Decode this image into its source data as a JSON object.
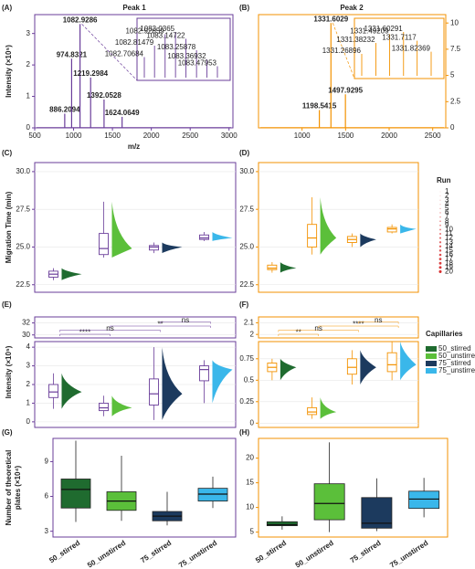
{
  "chart_data": [
    {
      "type": "spectrum",
      "panel": "(A)",
      "title": "Peak 1",
      "color": "#6a3d9a",
      "tick_text_color": "#333333",
      "y_axis_side": "left",
      "ylabel": "Intensity (×10⁵)",
      "xlabel": "m/z",
      "xlim": [
        500,
        3050
      ],
      "xticks": [
        500,
        1000,
        1500,
        2000,
        2500,
        3000
      ],
      "ylim": [
        0,
        3.6
      ],
      "yticks": [
        0,
        1,
        2,
        3
      ],
      "peaks": {
        "x": [
          886.2094,
          974.8321,
          1082.9286,
          1219.2984,
          1392.0528,
          1624.0649
        ],
        "values": [
          0.45,
          2.2,
          3.3,
          1.6,
          0.9,
          0.35
        ]
      },
      "inset": {
        "x": [
          1082.70684,
          1082.81479,
          1082.92659,
          1083.0365,
          1083.14722,
          1083.25878,
          1083.36932,
          1083.47953
        ],
        "values": [
          0.45,
          0.7,
          0.95,
          1.0,
          0.85,
          0.6,
          0.4,
          0.25
        ]
      }
    },
    {
      "type": "spectrum",
      "panel": "(B)",
      "title": "Peak 2",
      "color": "#f39200",
      "tick_text_color": "#f39200",
      "y_axis_side": "right",
      "xlim": [
        500,
        2650
      ],
      "xticks": [
        1000,
        1500,
        2000,
        2500
      ],
      "ylim": [
        0,
        10.8
      ],
      "yticks": [
        0,
        2.5,
        5,
        7.5,
        10
      ],
      "peaks": {
        "x": [
          1198.5415,
          1331.6029,
          1497.9295
        ],
        "values": [
          1.7,
          10,
          3.2
        ]
      },
      "inset": {
        "x": [
          1331.26896,
          1331.38232,
          1331.49209,
          1331.60291,
          1331.7117,
          1331.82369
        ],
        "values": [
          0.5,
          0.75,
          0.95,
          1.0,
          0.8,
          0.55
        ]
      }
    },
    {
      "type": "violin",
      "panel": "(C)",
      "color": "#6a3d9a",
      "tick_text_color": "#333333",
      "ylabel": "Migration Time (min)",
      "grid": true,
      "colors": [
        "#1f6b2f",
        "#5bbf3a",
        "#1c3a5e",
        "#3ab7ea"
      ],
      "ylim": [
        22,
        30.6
      ],
      "yticks": [
        22.5,
        {
          "value": 25,
          "label": "25.0"
        },
        27.5,
        {
          "value": 30,
          "label": "30.0"
        }
      ],
      "boxes": [
        [
          22.8,
          23.0,
          23.2,
          23.4,
          23.6
        ],
        [
          24.3,
          24.5,
          24.9,
          25.9,
          28.0
        ],
        [
          24.6,
          24.8,
          25.0,
          25.1,
          25.3
        ],
        [
          25.4,
          25.5,
          25.6,
          25.8,
          26.0
        ]
      ]
    },
    {
      "type": "violin",
      "panel": "(D)",
      "color": "#f39200",
      "tick_text_color": "#f39200",
      "grid": true,
      "colors": [
        "#1f6b2f",
        "#5bbf3a",
        "#1c3a5e",
        "#3ab7ea"
      ],
      "ylim": [
        22,
        30.6
      ],
      "yticks": [
        22.5,
        {
          "value": 25,
          "label": "25.0"
        },
        27.5,
        {
          "value": 30,
          "label": "30.0"
        }
      ],
      "boxes": [
        [
          23.3,
          23.5,
          23.6,
          23.8,
          24.0
        ],
        [
          24.5,
          25.0,
          25.6,
          26.5,
          28.3
        ],
        [
          25.0,
          25.3,
          25.5,
          25.7,
          25.9
        ],
        [
          25.9,
          26.0,
          26.2,
          26.3,
          26.5
        ]
      ],
      "run_legend": {
        "title": "Run",
        "labels": [
          1,
          2,
          3,
          4,
          5,
          6,
          7,
          8,
          9,
          10,
          11,
          12,
          13,
          14,
          15,
          16,
          17,
          18,
          19,
          20
        ]
      }
    },
    {
      "type": "violin",
      "panel": "(E)",
      "color": "#6a3d9a",
      "tick_text_color": "#333333",
      "ylabel": "Intensity (×10⁵)",
      "grid": true,
      "colors": [
        "#1f6b2f",
        "#5bbf3a",
        "#1c3a5e",
        "#3ab7ea"
      ],
      "ylim": [
        -0.3,
        4.3
      ],
      "yticks": [
        0,
        1,
        2,
        3,
        4
      ],
      "ylim_top": [
        29.5,
        33
      ],
      "yticks_top": [
        30,
        32
      ],
      "significance": [
        "****",
        "ns",
        "**",
        "ns"
      ],
      "boxes": [
        [
          0.7,
          1.3,
          1.6,
          2.0,
          2.6
        ],
        [
          0.3,
          0.6,
          0.75,
          1.0,
          1.4
        ],
        [
          0.1,
          0.9,
          1.5,
          2.3,
          4.0
        ],
        [
          1.0,
          2.2,
          2.8,
          3.0,
          3.3
        ]
      ]
    },
    {
      "type": "violin",
      "panel": "(F)",
      "color": "#f39200",
      "tick_text_color": "#f39200",
      "grid": true,
      "colors": [
        "#1f6b2f",
        "#5bbf3a",
        "#1c3a5e",
        "#3ab7ea"
      ],
      "ylim": [
        -0.05,
        0.95
      ],
      "yticks": [
        0,
        0.25,
        0.5,
        0.75
      ],
      "ylim_top": [
        1.97,
        2.15
      ],
      "yticks_top": [
        2,
        2.1
      ],
      "significance": [
        "**",
        "ns",
        "****",
        "ns"
      ],
      "boxes": [
        [
          0.5,
          0.6,
          0.65,
          0.7,
          0.75
        ],
        [
          0.05,
          0.1,
          0.13,
          0.18,
          0.3
        ],
        [
          0.45,
          0.57,
          0.65,
          0.75,
          0.85
        ],
        [
          0.5,
          0.6,
          0.68,
          0.82,
          0.95
        ]
      ],
      "legend_title": "Capillaries",
      "categories": [
        "50_stirred",
        "50_unstirred",
        "75_stirred",
        "75_unstirred"
      ]
    },
    {
      "type": "box",
      "panel": "(G)",
      "color": "#6a3d9a",
      "tick_text_color": "#333333",
      "ylabel": [
        "Number of theoretical",
        "plates (×10⁴)"
      ],
      "colors": [
        "#1f6b2f",
        "#5bbf3a",
        "#1c3a5e",
        "#3ab7ea"
      ],
      "categories": [
        "50_stirred",
        "50_unstirred",
        "75_stirred",
        "75_unstirred"
      ],
      "ylim": [
        2.5,
        11
      ],
      "yticks": [
        3,
        6,
        9
      ],
      "boxes": [
        [
          3.8,
          5.0,
          6.6,
          7.5,
          10.8
        ],
        [
          3.9,
          4.8,
          5.6,
          6.4,
          9.5
        ],
        [
          3.5,
          3.9,
          4.3,
          4.7,
          6.4
        ],
        [
          5.0,
          5.6,
          6.2,
          6.7,
          7.7
        ]
      ]
    },
    {
      "type": "box",
      "panel": "(H)",
      "color": "#f39200",
      "tick_text_color": "#f39200",
      "colors": [
        "#1f6b2f",
        "#5bbf3a",
        "#1c3a5e",
        "#3ab7ea"
      ],
      "categories": [
        "50_stirred",
        "50_unstirred",
        "75_stirred",
        "75_unstirred"
      ],
      "ylim": [
        4,
        24
      ],
      "yticks": [
        5,
        10,
        15,
        20
      ],
      "boxes": [
        [
          5.5,
          6.3,
          6.5,
          7.1,
          8.2
        ],
        [
          5.0,
          7.5,
          10.8,
          14.8,
          23.2
        ],
        [
          5.2,
          5.8,
          6.8,
          12.0,
          15.9
        ],
        [
          8.0,
          9.8,
          11.7,
          13.3,
          16.0
        ]
      ]
    }
  ]
}
